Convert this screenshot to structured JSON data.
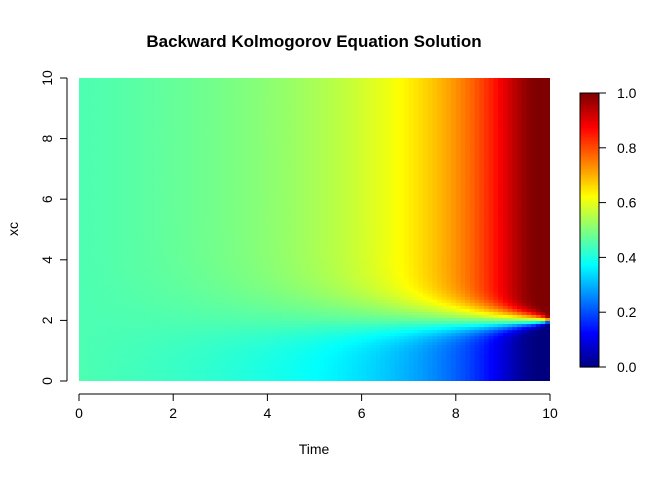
{
  "chart_data": {
    "type": "heatmap",
    "title": "Backward Kolmogorov Equation Solution",
    "xlabel": "Time",
    "ylabel": "xc",
    "xlim": [
      0,
      10
    ],
    "ylim": [
      0,
      10
    ],
    "x_ticks": [
      "0",
      "2",
      "4",
      "6",
      "8",
      "10"
    ],
    "y_ticks": [
      "0",
      "2",
      "4",
      "6",
      "8",
      "10"
    ],
    "colorbar": {
      "range": [
        0,
        1
      ],
      "ticks": [
        "0.0",
        "0.2",
        "0.4",
        "0.6",
        "0.8",
        "1.0"
      ],
      "colormap": [
        "#00007F",
        "#0000FF",
        "#007FFF",
        "#00FFFF",
        "#7FFF7F",
        "#FFFF00",
        "#FF7F00",
        "#FF0000",
        "#7F0000"
      ]
    },
    "surface": {
      "description_of_values": "u(t, xc) on grid; initial value near 0.45 at t=0, converging to step at xc=2 by t=10",
      "threshold_xc": 2,
      "base_value": 0.45,
      "grid_nx": 100,
      "grid_ny": 100
    }
  }
}
